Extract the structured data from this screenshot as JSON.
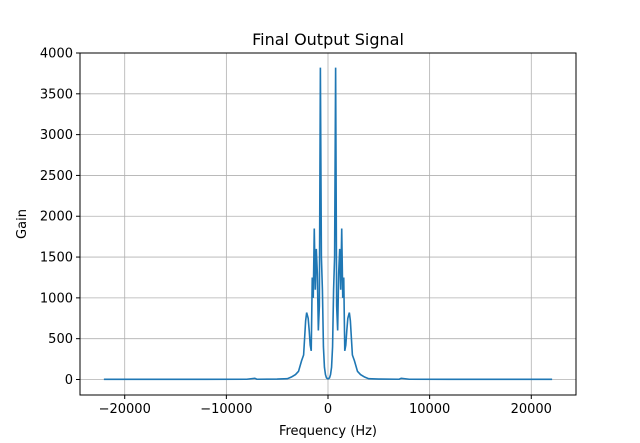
{
  "chart_data": {
    "type": "line",
    "title": "Final Output Signal",
    "xlabel": "Frequency (Hz)",
    "ylabel": "Gain",
    "xlim": [
      -24400,
      24400
    ],
    "ylim": [
      -190,
      4000
    ],
    "x_ticks": [
      -20000,
      -10000,
      0,
      10000,
      20000
    ],
    "x_tick_labels": [
      "−20000",
      "−10000",
      "0",
      "10000",
      "20000"
    ],
    "y_ticks": [
      0,
      500,
      1000,
      1500,
      2000,
      2500,
      3000,
      3500,
      4000
    ],
    "y_tick_labels": [
      "0",
      "500",
      "1000",
      "1500",
      "2000",
      "2500",
      "3000",
      "3500",
      "4000"
    ],
    "grid": true,
    "line_color": "#1f77b4",
    "series": [
      {
        "x": [
          -22050,
          -12000,
          -8000,
          -7200,
          -7000,
          -5000,
          -4000,
          -3600,
          -3200,
          -2900,
          -2600,
          -2400,
          -2200,
          -2100,
          -1950,
          -1850,
          -1750,
          -1650,
          -1550,
          -1450,
          -1350,
          -1250,
          -1150,
          -1050,
          -950,
          -850,
          -750,
          -650,
          -550,
          -450,
          -350,
          -250,
          -150,
          -50,
          50,
          150,
          250,
          350,
          450,
          550,
          650,
          750,
          850,
          950,
          1050,
          1150,
          1250,
          1350,
          1450,
          1550,
          1650,
          1750,
          1850,
          1950,
          2100,
          2200,
          2400,
          2600,
          2900,
          3200,
          3600,
          4000,
          5000,
          7000,
          7200,
          8000,
          12000,
          22050
        ],
        "y": [
          2,
          2,
          3,
          15,
          3,
          5,
          10,
          30,
          60,
          100,
          230,
          300,
          720,
          820,
          750,
          600,
          420,
          350,
          1250,
          1000,
          1850,
          1100,
          1600,
          1300,
          600,
          900,
          3820,
          1500,
          1100,
          400,
          150,
          60,
          20,
          10,
          10,
          20,
          60,
          150,
          400,
          1100,
          1500,
          3820,
          900,
          600,
          1300,
          1600,
          1100,
          1850,
          1000,
          1250,
          350,
          420,
          600,
          750,
          820,
          720,
          300,
          230,
          100,
          60,
          30,
          10,
          5,
          3,
          15,
          3,
          2,
          2
        ]
      }
    ]
  }
}
